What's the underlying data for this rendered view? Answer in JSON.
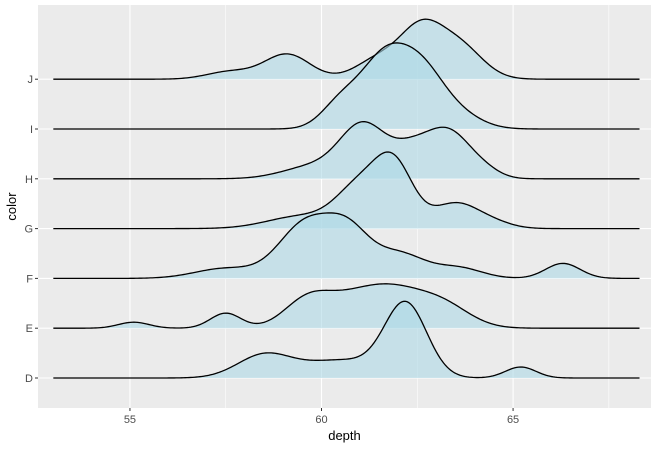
{
  "chart_data": {
    "type": "ridgeline",
    "xlabel": "depth",
    "ylabel": "color",
    "xlim": [
      52.6,
      68.6
    ],
    "x_ticks": [
      55,
      60,
      65
    ],
    "x_tick_labels": [
      "55",
      "60",
      "65"
    ],
    "categories": [
      "D",
      "E",
      "F",
      "G",
      "H",
      "I",
      "J"
    ],
    "x_range": [
      53,
      68.3
    ],
    "grid": true,
    "fill_color": "#add8e6",
    "fill_opacity": 0.6,
    "line_color": "#000000",
    "panel_color": "#ebebeb",
    "series": [
      {
        "name": "D",
        "peaks": [
          {
            "mu": 58.5,
            "sd": 0.7,
            "h": 0.45
          },
          {
            "mu": 60.5,
            "sd": 1.0,
            "h": 0.35
          },
          {
            "mu": 62.2,
            "sd": 0.55,
            "h": 1.45
          },
          {
            "mu": 65.2,
            "sd": 0.4,
            "h": 0.22
          }
        ]
      },
      {
        "name": "E",
        "peaks": [
          {
            "mu": 55.1,
            "sd": 0.4,
            "h": 0.12
          },
          {
            "mu": 57.5,
            "sd": 0.4,
            "h": 0.3
          },
          {
            "mu": 59.6,
            "sd": 0.6,
            "h": 0.45
          },
          {
            "mu": 60.8,
            "sd": 0.9,
            "h": 0.55
          },
          {
            "mu": 62.0,
            "sd": 0.8,
            "h": 0.55
          },
          {
            "mu": 63.2,
            "sd": 0.7,
            "h": 0.4
          }
        ]
      },
      {
        "name": "F",
        "peaks": [
          {
            "mu": 57.5,
            "sd": 0.8,
            "h": 0.2
          },
          {
            "mu": 59.6,
            "sd": 0.7,
            "h": 1.1
          },
          {
            "mu": 60.7,
            "sd": 0.55,
            "h": 0.8
          },
          {
            "mu": 62.0,
            "sd": 0.7,
            "h": 0.5
          },
          {
            "mu": 63.6,
            "sd": 0.6,
            "h": 0.2
          },
          {
            "mu": 66.3,
            "sd": 0.45,
            "h": 0.3
          }
        ]
      },
      {
        "name": "G",
        "peaks": [
          {
            "mu": 59.5,
            "sd": 0.9,
            "h": 0.25
          },
          {
            "mu": 61.0,
            "sd": 0.6,
            "h": 0.8
          },
          {
            "mu": 61.9,
            "sd": 0.5,
            "h": 1.2
          },
          {
            "mu": 63.5,
            "sd": 0.6,
            "h": 0.5
          },
          {
            "mu": 64.5,
            "sd": 0.5,
            "h": 0.1
          }
        ]
      },
      {
        "name": "H",
        "peaks": [
          {
            "mu": 59.8,
            "sd": 0.8,
            "h": 0.25
          },
          {
            "mu": 61.1,
            "sd": 0.6,
            "h": 1.05
          },
          {
            "mu": 62.3,
            "sd": 0.5,
            "h": 0.45
          },
          {
            "mu": 63.3,
            "sd": 0.6,
            "h": 0.95
          },
          {
            "mu": 64.3,
            "sd": 0.4,
            "h": 0.1
          }
        ]
      },
      {
        "name": "I",
        "peaks": [
          {
            "mu": 60.5,
            "sd": 0.5,
            "h": 0.5
          },
          {
            "mu": 61.6,
            "sd": 0.6,
            "h": 1.3
          },
          {
            "mu": 62.6,
            "sd": 0.6,
            "h": 1.1
          },
          {
            "mu": 63.6,
            "sd": 0.6,
            "h": 0.25
          }
        ]
      },
      {
        "name": "J",
        "peaks": [
          {
            "mu": 57.6,
            "sd": 0.6,
            "h": 0.15
          },
          {
            "mu": 59.1,
            "sd": 0.6,
            "h": 0.5
          },
          {
            "mu": 61.5,
            "sd": 0.6,
            "h": 0.4
          },
          {
            "mu": 62.6,
            "sd": 0.55,
            "h": 0.95
          },
          {
            "mu": 63.6,
            "sd": 0.6,
            "h": 0.65
          }
        ]
      }
    ]
  }
}
